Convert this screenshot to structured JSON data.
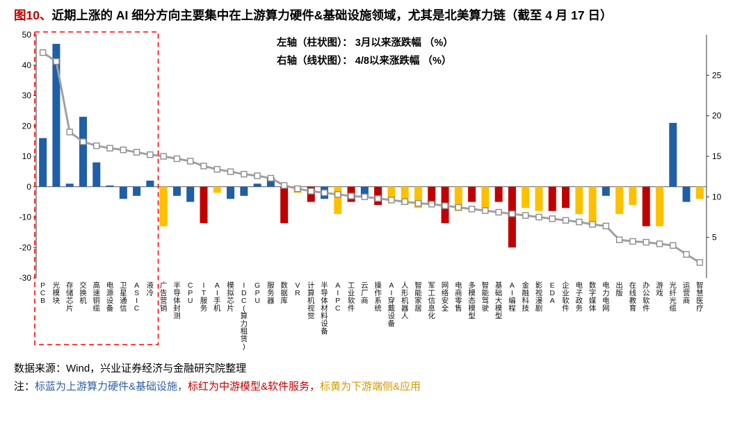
{
  "title": {
    "prefix": "图10、",
    "text": "近期上涨的 AI 细分方向主要集中在上游算力硬件&基础设施领域，尤其是北美算力链（截至 4 月 17 日）"
  },
  "legend": {
    "left_axis": "左轴（柱状图）： 3月以来涨跌幅 （%）",
    "right_axis": "右轴（线状图）： 4/8以来涨跌幅 （%）"
  },
  "footer": {
    "source": "数据来源：Wind，兴业证券经济与金融研究院整理",
    "note_prefix": "注：",
    "note_blue": "标蓝为上游算力硬件&基础设施，",
    "note_red": "标红为中游模型&软件服务，",
    "note_yellow": "标黄为下游端侧&应用"
  },
  "colors": {
    "bar_blue": "#1F5EA8",
    "bar_red": "#C00000",
    "bar_yellow": "#FFC000",
    "line_gray": "#A0A0A0",
    "marker_edge": "#8C8C8C",
    "highlight_box_red": "#FF0000",
    "figure_number_red": "#C00000"
  },
  "chart_data": {
    "type": "bar+line",
    "title": "近期上涨的AI细分方向涨跌幅",
    "legend_position": "top-center",
    "grid": false,
    "categories": [
      "PCB",
      "光模块",
      "存储芯片",
      "交换机",
      "高速铜缆",
      "电源设备",
      "卫星通信",
      "ASIC",
      "液冷",
      "广告营销",
      "半导体封测",
      "CPU",
      "IT服务",
      "AI手机",
      "模拟芯片",
      "IDC(算力租赁)",
      "GPU",
      "服务器",
      "数据库",
      "VR",
      "计算机视觉",
      "半导体材料设备",
      "AIPC",
      "工业软件",
      "云厂商",
      "操作系统",
      "AI穿戴设备",
      "人形机器人",
      "智能家居",
      "军工信息化",
      "网络安全",
      "电商零售",
      "多模态模型",
      "智能驾驶",
      "基础大模型",
      "AI编程",
      "金融科技",
      "影视漫剧",
      "EDA",
      "企业软件",
      "电子政务",
      "数字媒体",
      "电力电网",
      "出版",
      "在线教育",
      "办公软件",
      "游戏",
      "光纤光缆",
      "运营商",
      "智慧医疗"
    ],
    "category_groups": [
      "blue",
      "blue",
      "blue",
      "blue",
      "blue",
      "blue",
      "blue",
      "blue",
      "blue",
      "yellow",
      "blue",
      "blue",
      "red",
      "yellow",
      "blue",
      "blue",
      "blue",
      "blue",
      "red",
      "yellow",
      "red",
      "blue",
      "yellow",
      "red",
      "blue",
      "red",
      "yellow",
      "yellow",
      "yellow",
      "red",
      "red",
      "yellow",
      "red",
      "yellow",
      "red",
      "red",
      "yellow",
      "yellow",
      "red",
      "red",
      "yellow",
      "yellow",
      "blue",
      "yellow",
      "yellow",
      "red",
      "yellow",
      "blue",
      "blue",
      "yellow"
    ],
    "group_meaning": {
      "blue": "上游算力硬件&基础设施",
      "red": "中游模型&软件服务",
      "yellow": "下游端侧&应用"
    },
    "bar_series": {
      "name": "3月以来涨跌幅（%）",
      "axis": "left",
      "values": [
        16,
        47,
        1,
        23,
        8,
        0.4,
        -4,
        -3,
        2,
        -13,
        -3,
        -5,
        -12,
        -2,
        -4,
        -3,
        1,
        3,
        -12,
        -2,
        -5,
        -4,
        -9,
        -5,
        -3,
        -6,
        -4,
        -6,
        -7,
        -6,
        -12,
        -8,
        -5,
        -7,
        -5,
        -20,
        -7,
        -8,
        -8,
        -7,
        -9,
        -13,
        -3,
        -9,
        -6,
        -13,
        -13,
        21,
        -5,
        -4
      ]
    },
    "line_series": {
      "name": "4/8以来涨跌幅（%）",
      "axis": "right",
      "values": [
        27.8,
        26.7,
        18.0,
        16.8,
        16.3,
        16.0,
        15.8,
        15.5,
        15.2,
        15.0,
        14.7,
        14.4,
        13.8,
        13.4,
        13.1,
        12.8,
        12.6,
        12.3,
        11.4,
        11.0,
        10.7,
        10.5,
        10.3,
        10.1,
        10.0,
        9.8,
        9.6,
        9.4,
        9.2,
        9.1,
        8.9,
        8.7,
        8.5,
        8.3,
        8.1,
        7.9,
        7.7,
        7.5,
        7.3,
        7.1,
        6.9,
        6.6,
        6.4,
        4.7,
        4.5,
        4.4,
        4.2,
        4.0,
        2.9,
        1.9
      ]
    },
    "left_axis": {
      "min": -30,
      "max": 50,
      "ticks": [
        50,
        40,
        30,
        20,
        10,
        0,
        -10,
        -20,
        -30
      ]
    },
    "right_axis": {
      "min": 0,
      "max": 30,
      "ticks": [
        25,
        20,
        15,
        10,
        5
      ]
    },
    "highlight_box": {
      "start_index": 0,
      "end_index": 8,
      "style": "red-dashed"
    }
  }
}
